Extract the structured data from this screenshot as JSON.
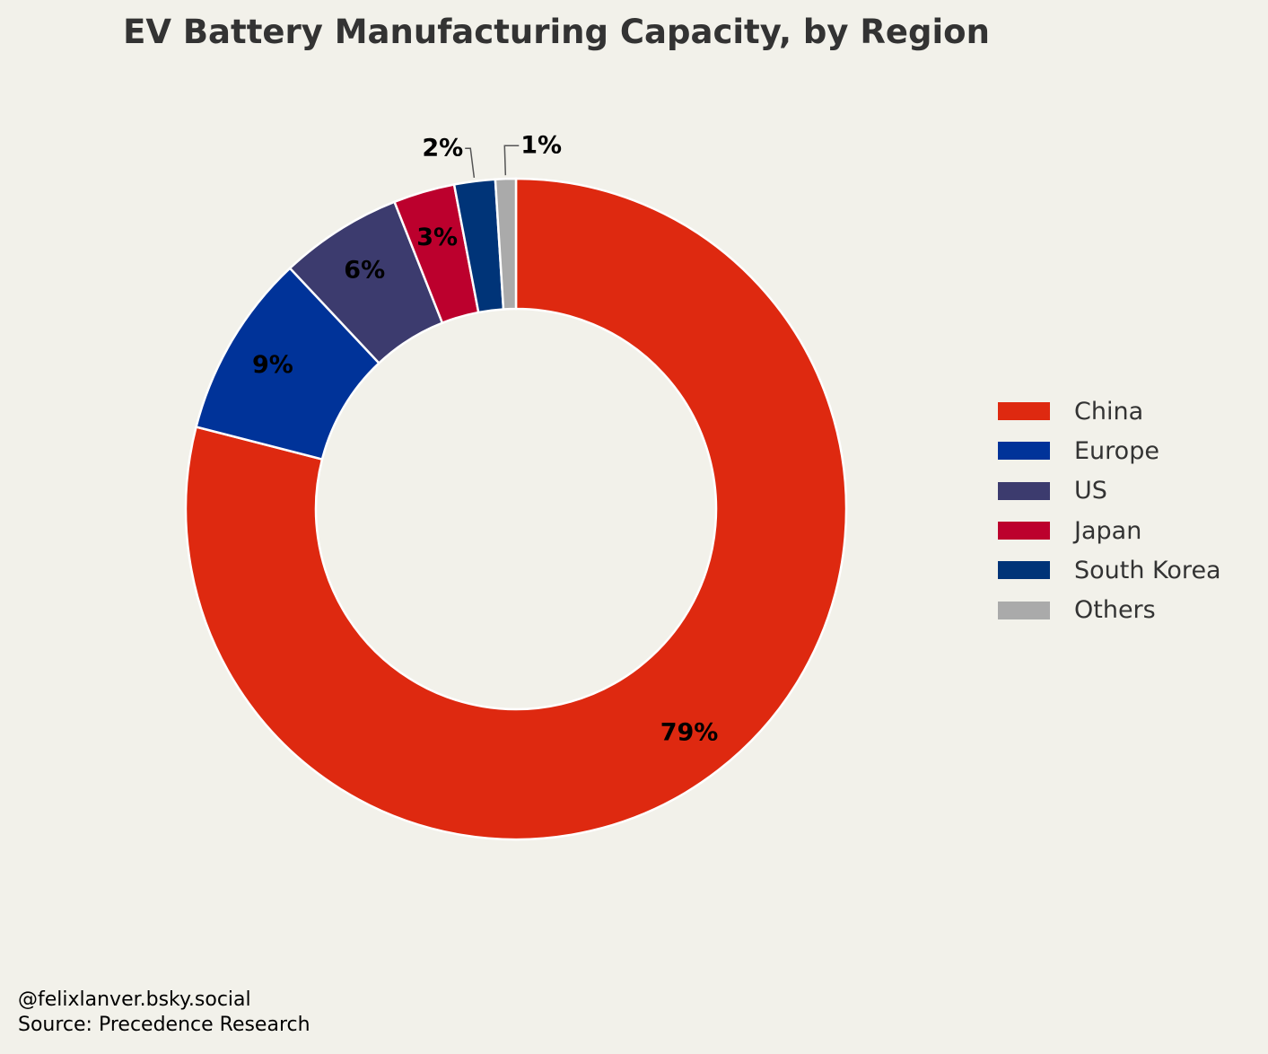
{
  "chart_data": {
    "type": "pie",
    "variant": "donut",
    "title": "EV Battery Manufacturing Capacity, by Region",
    "categories": [
      "China",
      "Europe",
      "US",
      "Japan",
      "South Korea",
      "Others"
    ],
    "values": [
      79,
      9,
      6,
      3,
      2,
      1
    ],
    "data_labels": [
      "79%",
      "9%",
      "6%",
      "3%",
      "2%",
      "1%"
    ],
    "colors": [
      "#de2910",
      "#003399",
      "#3c3b6e",
      "#bc002d",
      "#003478",
      "#aaaaaa"
    ],
    "start_angle": 90,
    "direction": "clockwise",
    "legend_placement": "right"
  },
  "footer": {
    "credit": "@felixlanver.bsky.social",
    "source": "Source: Precedence Research"
  }
}
